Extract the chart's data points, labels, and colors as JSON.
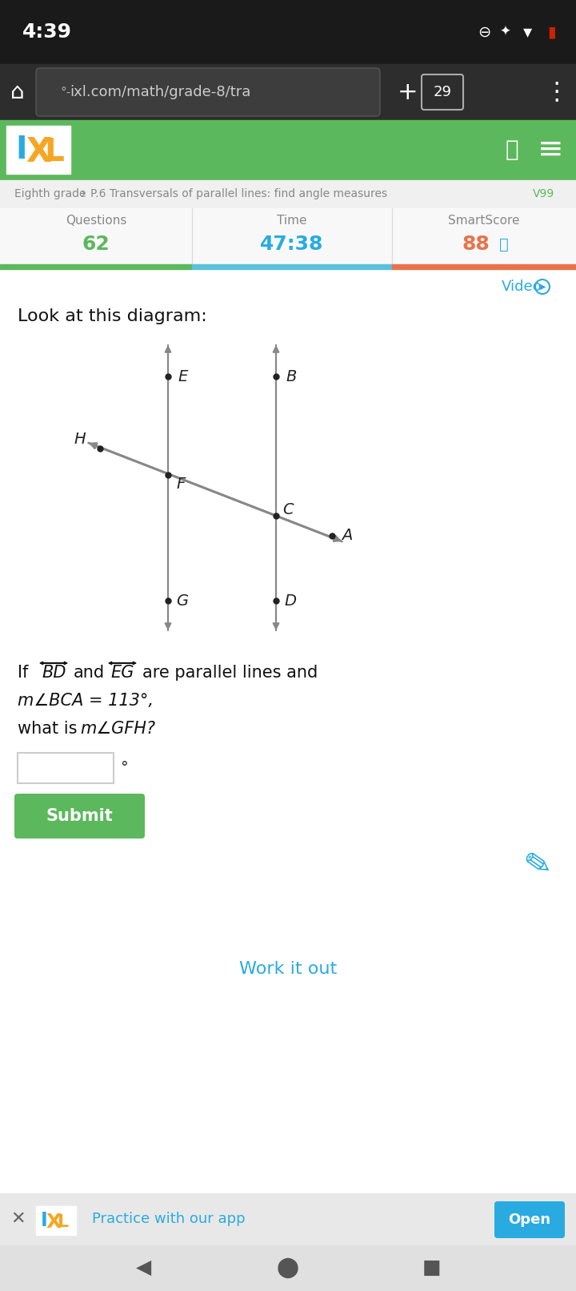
{
  "bg_color_top": "#1a1a1a",
  "bg_color_browser": "#2d2d2d",
  "bg_color_white": "#ffffff",
  "bg_color_light": "#f5f5f5",
  "green_bar": "#5cb85c",
  "blue_bar": "#5bc0de",
  "orange_bar": "#e8734a",
  "time_text": "4:39",
  "url_text": "ixl.com/math/grade-8/tra",
  "tab_count": "29",
  "ixl_blue": "#29abe2",
  "ixl_yellow": "#f5a623",
  "ixl_green": "#5cb85c",
  "nav_text": "Eighth grade",
  "nav_text2": "P.6 Transversals of parallel lines: find angle measures",
  "nav_v": "V99",
  "questions_label": "Questions",
  "time_label": "Time",
  "smart_label": "SmartScore",
  "questions_val": "62",
  "time_val": "47:38",
  "smart_val": "88",
  "video_text": "Video",
  "look_text": "Look at this diagram:",
  "question_text1": "If",
  "bd_label": "BD",
  "eg_label": "EG",
  "question_text2": "are parallel lines and",
  "angle_text": "m∠BCA = 113°,",
  "question_text3": "what is",
  "angle_text2": "m∠GFH?",
  "submit_text": "Submit",
  "work_text": "Work it out",
  "practice_text": "Practice with our app",
  "open_text": "Open",
  "diagram_line_color": "#888888",
  "dot_color": "#222222",
  "label_color": "#222222"
}
